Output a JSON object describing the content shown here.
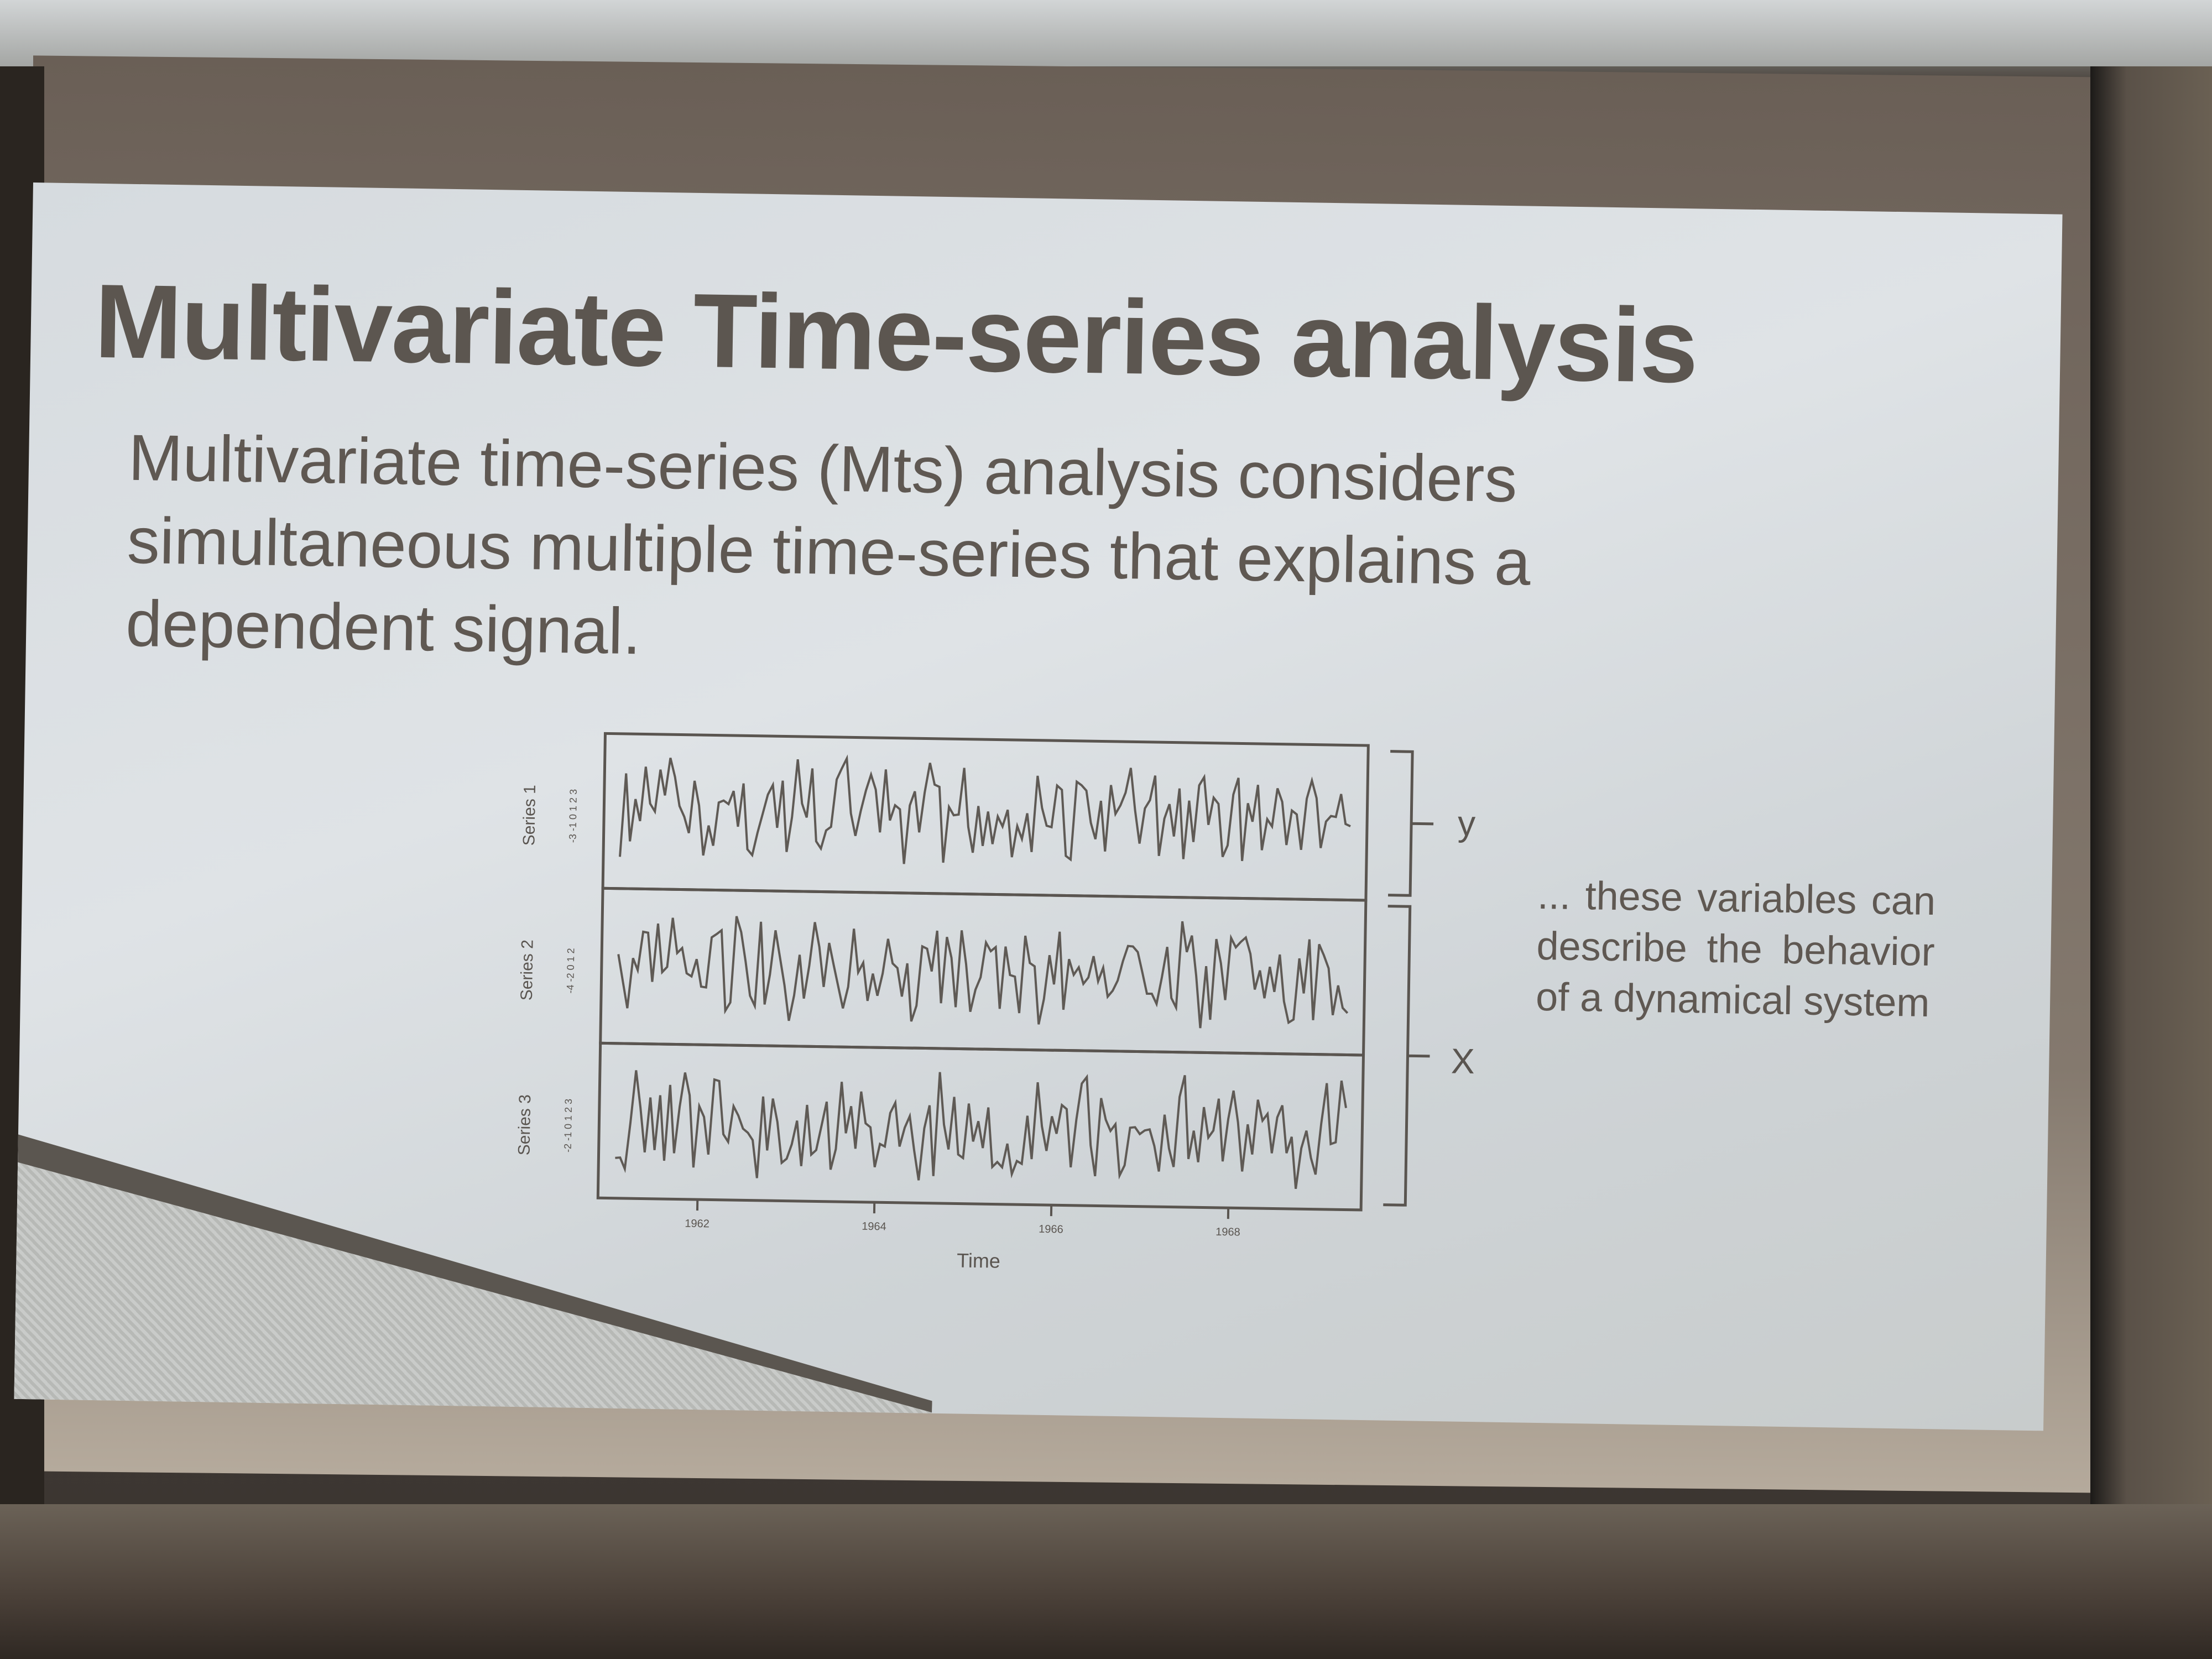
{
  "slide": {
    "title": "Multivariate Time-series analysis",
    "body": "Multivariate time-series (Mts) analysis considers simultaneous multiple time-series that explains a dependent signal.",
    "side_note": "... these variables can describe the behavior of a dynamical system"
  },
  "figure": {
    "series_labels": [
      "Series 1",
      "Series 2",
      "Series 3"
    ],
    "y_ticks": [
      "-3 -1 0 1 2 3",
      "-4 -2 0 1 2",
      "-2 -1 0 1 2 3"
    ],
    "x_ticks": [
      "1962",
      "1964",
      "1966",
      "1968"
    ],
    "x_label": "Time",
    "bracket_y": "y",
    "bracket_x": "X"
  }
}
